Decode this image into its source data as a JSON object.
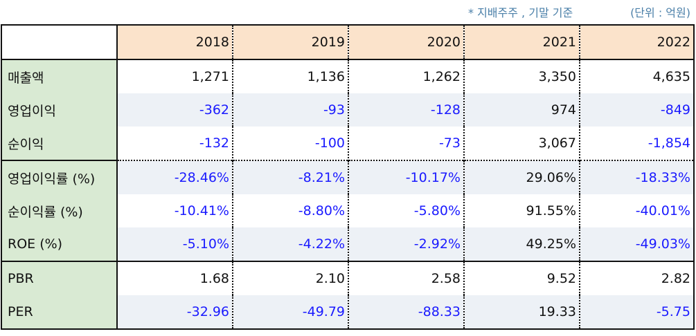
{
  "notes": {
    "basis": "* 지배주주 , 기말 기준",
    "unit": "(단위 : 억원)"
  },
  "table": {
    "years": [
      "2018",
      "2019",
      "2020",
      "2021",
      "2022"
    ],
    "rows": [
      {
        "label": "매출액",
        "values": [
          "1,271",
          "1,136",
          "1,262",
          "3,350",
          "4,635"
        ]
      },
      {
        "label": "영업이익",
        "values": [
          "-362",
          "-93",
          "-128",
          "974",
          "-849"
        ]
      },
      {
        "label": "순이익",
        "values": [
          "-132",
          "-100",
          "-73",
          "3,067",
          "-1,854"
        ]
      },
      {
        "label": "영업이익률 (%)",
        "values": [
          "-28.46%",
          "-8.21%",
          "-10.17%",
          "29.06%",
          "-18.33%"
        ]
      },
      {
        "label": "순이익률 (%)",
        "values": [
          "-10.41%",
          "-8.80%",
          "-5.80%",
          "91.55%",
          "-40.01%"
        ]
      },
      {
        "label": "ROE (%)",
        "values": [
          "-5.10%",
          "-4.22%",
          "-2.92%",
          "49.25%",
          "-49.03%"
        ]
      },
      {
        "label": "PBR",
        "values": [
          "1.68",
          "2.10",
          "2.58",
          "9.52",
          "2.82"
        ]
      },
      {
        "label": "PER",
        "values": [
          "-32.96",
          "-49.79",
          "-88.33",
          "19.33",
          "-5.75"
        ]
      }
    ]
  },
  "colors": {
    "header_bg": "#fbe3cb",
    "label_bg": "#d9ead3",
    "stripe_bg": "#edf1f6",
    "negative_text": "#1a1aff",
    "note_text": "#4a7fa8"
  }
}
